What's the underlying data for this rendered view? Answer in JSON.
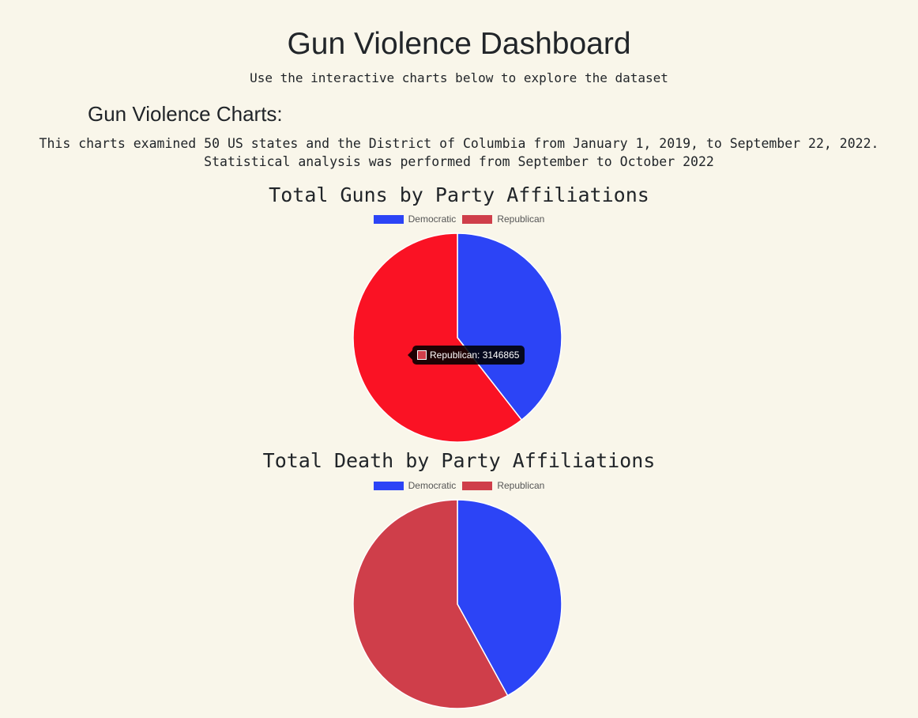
{
  "page": {
    "title": "Gun Violence Dashboard",
    "subtitle": "Use the interactive charts below to explore the dataset"
  },
  "section": {
    "heading": "Gun Violence Charts:",
    "description": "This charts examined 50 US states and the District of Columbia from January 1, 2019, to September 22, 2022. Statistical analysis was performed from September to October 2022"
  },
  "tooltip": {
    "label": "Republican: 3146865",
    "swatch_color": "#cf3e4a"
  },
  "chart_data": [
    {
      "type": "pie",
      "title": "Total Guns by Party Affiliations",
      "legend_position": "top",
      "categories": [
        "Democratic",
        "Republican"
      ],
      "values": [
        2050000,
        3146865
      ],
      "colors": [
        "#2c44f6",
        "#cf3e4a"
      ],
      "highlight_colors": [
        "#2c44f6",
        "#fa1224"
      ],
      "hovered_index": 1
    },
    {
      "type": "pie",
      "title": "Total Death by Party Affiliations",
      "legend_position": "top",
      "categories": [
        "Democratic",
        "Republican"
      ],
      "values": [
        42,
        58
      ],
      "colors": [
        "#2c44f6",
        "#cf3e4a"
      ],
      "hovered_index": null
    }
  ]
}
